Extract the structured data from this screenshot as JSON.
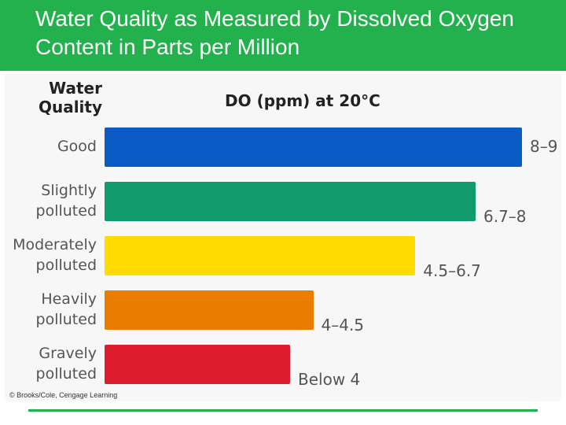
{
  "slide": {
    "title": "Water Quality as Measured by Dissolved Oxygen Content in Parts per Million",
    "credit": "© Brooks/Cole, Cengage Learning",
    "colors": {
      "header": "#22b14c",
      "rule": "#22b14c"
    }
  },
  "chart_data": {
    "type": "bar",
    "orientation": "horizontal",
    "title": "",
    "category_axis_title": "Water Quality",
    "value_axis_title": "DO (ppm) at 20°C",
    "categories": [
      "Good",
      "Slightly polluted",
      "Moderately polluted",
      "Heavily polluted",
      "Gravely polluted"
    ],
    "value_labels": [
      "8–9",
      "6.7–8",
      "4.5–6.7",
      "4–4.5",
      "Below 4"
    ],
    "values": [
      9,
      8,
      6.7,
      4.5,
      4
    ],
    "colors": [
      "#0a5cc4",
      "#119b6c",
      "#ffdb00",
      "#ea7d00",
      "#dd1c2e"
    ],
    "xlim": [
      0,
      9
    ],
    "grid": false,
    "legend": "none"
  }
}
